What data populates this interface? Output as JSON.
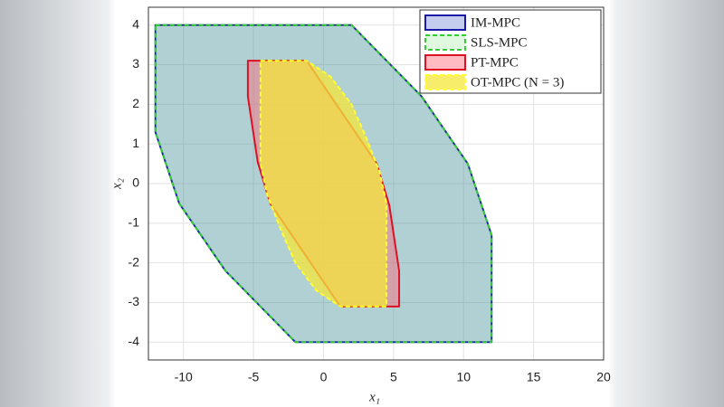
{
  "chart_data": {
    "type": "polygon",
    "xlabel": "x₁",
    "ylabel": "x₂",
    "xlim": [
      -12.5,
      20
    ],
    "ylim": [
      -4.45,
      4.45
    ],
    "xticks": [
      -10,
      -5,
      0,
      5,
      10,
      15,
      20
    ],
    "yticks": [
      -4,
      -3,
      -2,
      -1,
      0,
      1,
      2,
      3,
      4
    ],
    "grid": true,
    "legend": "northeast",
    "series": [
      {
        "name": "IM-MPC",
        "color": "#1a1aa8",
        "fill": "#5a6fd0",
        "alpha": 0.35,
        "dashed": false,
        "x": [
          -12,
          2,
          7,
          10.3,
          12,
          12,
          -2,
          -7,
          -10.3,
          -12
        ],
        "values": [
          4,
          4,
          2.2,
          0.5,
          -1.3,
          -4,
          -4,
          -2.2,
          -0.5,
          1.3
        ]
      },
      {
        "name": "SLS-MPC",
        "color": "#33cc33",
        "fill": "#66dd66",
        "alpha": 0.2,
        "dashed": true,
        "x": [
          -12,
          2,
          7,
          10.3,
          12,
          12,
          -2,
          -7,
          -10.3,
          -12
        ],
        "values": [
          4,
          4,
          2.2,
          0.5,
          -1.3,
          -4,
          -4,
          -2.2,
          -0.5,
          1.3
        ]
      },
      {
        "name": "PT-MPC",
        "color": "#dd1122",
        "fill": "#ff6677",
        "alpha": 0.45,
        "dashed": false,
        "x": [
          -5.4,
          -1.2,
          3.8,
          4.7,
          5.4,
          5.4,
          1.2,
          -3.8,
          -4.7,
          -5.4
        ],
        "values": [
          3.1,
          3.1,
          0.5,
          -0.55,
          -2.2,
          -3.1,
          -3.1,
          -0.5,
          0.55,
          2.2
        ]
      },
      {
        "name": "OT-MPC (N = 3)",
        "color": "#ffff33",
        "fill": "#f5e63a",
        "alpha": 0.75,
        "dashed": true,
        "x": [
          -4.5,
          -1.2,
          0.5,
          2,
          3,
          4,
          4.5,
          4.5,
          1.2,
          -0.5,
          -2,
          -3,
          -4,
          -4.5
        ],
        "values": [
          3.1,
          3.1,
          2.7,
          2,
          1.2,
          0.3,
          -0.5,
          -3.1,
          -3.1,
          -2.7,
          -2,
          -1.2,
          -0.3,
          0.5
        ]
      }
    ]
  }
}
